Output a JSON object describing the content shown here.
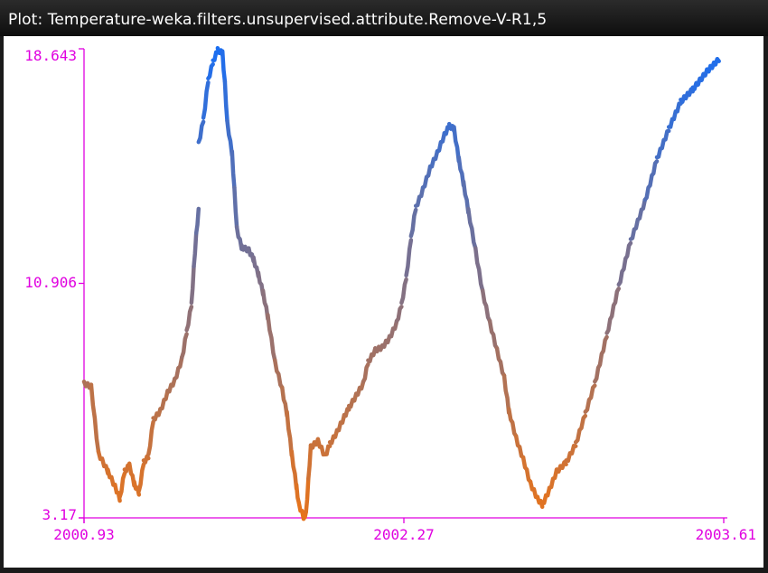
{
  "window": {
    "title": "Plot: Temperature-weka.filters.unsupervised.attribute.Remove-V-R1,5"
  },
  "colors": {
    "axis": "#e000e0",
    "low": "#e8731a",
    "high": "#1a6ef2",
    "background": "#ffffff"
  },
  "chart_data": {
    "type": "line",
    "xlim": [
      2000.93,
      2003.61
    ],
    "ylim": [
      3.17,
      18.643
    ],
    "x_ticks": [
      "2000.93",
      "2002.27",
      "2003.61"
    ],
    "y_ticks": [
      "18.643",
      "10.906",
      "3.17"
    ],
    "color_encoding": "color by y value: orange (low) to blue (high)",
    "segments": [
      [
        [
          2000.93,
          7.6
        ],
        [
          2000.96,
          7.5
        ],
        [
          2000.99,
          5.3
        ],
        [
          2001.03,
          4.7
        ],
        [
          2001.06,
          4.2
        ],
        [
          2001.08,
          3.8
        ],
        [
          2001.1,
          4.7
        ],
        [
          2001.12,
          4.9
        ],
        [
          2001.14,
          4.3
        ],
        [
          2001.16,
          4.0
        ],
        [
          2001.18,
          5.0
        ],
        [
          2001.2,
          5.2
        ],
        [
          2001.22,
          6.4
        ],
        [
          2001.25,
          6.7
        ],
        [
          2001.28,
          7.3
        ],
        [
          2001.31,
          7.7
        ],
        [
          2001.34,
          8.4
        ],
        [
          2001.36,
          9.3
        ],
        [
          2001.38,
          10.2
        ],
        [
          2001.39,
          11.4
        ],
        [
          2001.4,
          12.5
        ],
        [
          2001.41,
          13.3
        ]
      ],
      [
        [
          2001.41,
          15.5
        ],
        [
          2001.43,
          16.3
        ],
        [
          2001.45,
          17.6
        ],
        [
          2001.47,
          18.2
        ],
        [
          2001.49,
          18.6
        ],
        [
          2001.51,
          18.5
        ],
        [
          2001.52,
          17.5
        ],
        [
          2001.53,
          16.2
        ],
        [
          2001.55,
          15.2
        ],
        [
          2001.56,
          14.0
        ],
        [
          2001.57,
          12.7
        ],
        [
          2001.59,
          12.1
        ],
        [
          2001.62,
          12.0
        ],
        [
          2001.64,
          11.7
        ],
        [
          2001.66,
          11.2
        ],
        [
          2001.68,
          10.6
        ],
        [
          2001.7,
          9.8
        ],
        [
          2001.73,
          8.3
        ],
        [
          2001.76,
          7.4
        ],
        [
          2001.78,
          6.6
        ],
        [
          2001.8,
          5.3
        ],
        [
          2001.82,
          4.2
        ],
        [
          2001.83,
          3.6
        ],
        [
          2001.85,
          3.2
        ],
        [
          2001.86,
          3.3
        ],
        [
          2001.87,
          4.4
        ],
        [
          2001.88,
          5.5
        ],
        [
          2001.91,
          5.7
        ],
        [
          2001.94,
          5.2
        ],
        [
          2001.96,
          5.6
        ],
        [
          2001.99,
          6.0
        ],
        [
          2002.02,
          6.5
        ],
        [
          2002.04,
          6.8
        ],
        [
          2002.07,
          7.2
        ],
        [
          2002.1,
          7.6
        ],
        [
          2002.12,
          8.3
        ],
        [
          2002.15,
          8.7
        ],
        [
          2002.18,
          8.8
        ],
        [
          2002.21,
          9.1
        ],
        [
          2002.24,
          9.6
        ],
        [
          2002.26,
          10.2
        ],
        [
          2002.28,
          11.1
        ],
        [
          2002.3,
          12.4
        ],
        [
          2002.32,
          13.4
        ],
        [
          2002.35,
          14.0
        ],
        [
          2002.38,
          14.7
        ],
        [
          2002.41,
          15.2
        ],
        [
          2002.44,
          15.8
        ],
        [
          2002.46,
          16.1
        ],
        [
          2002.48,
          16.0
        ],
        [
          2002.5,
          15.0
        ],
        [
          2002.52,
          14.2
        ],
        [
          2002.54,
          13.3
        ],
        [
          2002.57,
          12.0
        ],
        [
          2002.6,
          10.6
        ],
        [
          2002.63,
          9.6
        ],
        [
          2002.66,
          8.7
        ],
        [
          2002.69,
          7.8
        ],
        [
          2002.71,
          6.7
        ],
        [
          2002.74,
          5.8
        ],
        [
          2002.77,
          5.1
        ],
        [
          2002.8,
          4.3
        ],
        [
          2002.83,
          3.8
        ],
        [
          2002.85,
          3.6
        ],
        [
          2002.88,
          4.1
        ],
        [
          2002.91,
          4.7
        ],
        [
          2002.95,
          5.0
        ],
        [
          2002.99,
          5.6
        ],
        [
          2003.03,
          6.6
        ],
        [
          2003.07,
          7.6
        ],
        [
          2003.12,
          9.2
        ],
        [
          2003.17,
          10.8
        ],
        [
          2003.22,
          12.3
        ],
        [
          2003.28,
          13.6
        ],
        [
          2003.33,
          15.0
        ],
        [
          2003.38,
          16.0
        ],
        [
          2003.43,
          16.9
        ],
        [
          2003.48,
          17.3
        ],
        [
          2003.54,
          17.9
        ],
        [
          2003.59,
          18.3
        ]
      ]
    ]
  }
}
